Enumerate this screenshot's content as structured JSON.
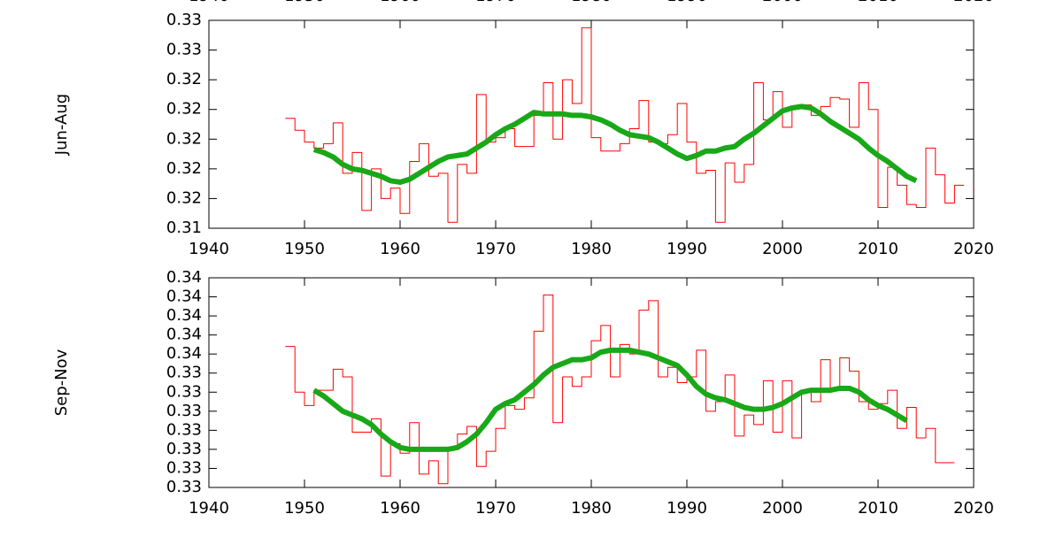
{
  "chart_data": [
    {
      "type": "line",
      "ylabel": "Jun-Aug",
      "xlim": [
        1940,
        2020
      ],
      "xticks": [
        1940,
        1950,
        1960,
        1970,
        1980,
        1990,
        2000,
        2010,
        2020
      ],
      "ylim": [
        0.314,
        0.328
      ],
      "yticks": [
        {
          "value": 0.314,
          "label": "0.31"
        },
        {
          "value": 0.316,
          "label": "0.32"
        },
        {
          "value": 0.318,
          "label": "0.32"
        },
        {
          "value": 0.32,
          "label": "0.32"
        },
        {
          "value": 0.322,
          "label": "0.32"
        },
        {
          "value": 0.324,
          "label": "0.32"
        },
        {
          "value": 0.326,
          "label": "0.33"
        },
        {
          "value": 0.328,
          "label": "0.33"
        }
      ],
      "series": [
        {
          "color": "#ff0000",
          "drawstyle": "steps-post",
          "x": [
            1948,
            1949,
            1950,
            1951,
            1952,
            1953,
            1954,
            1955,
            1956,
            1957,
            1958,
            1959,
            1960,
            1961,
            1962,
            1963,
            1964,
            1965,
            1966,
            1967,
            1968,
            1969,
            1970,
            1971,
            1972,
            1973,
            1974,
            1975,
            1976,
            1977,
            1978,
            1979,
            1980,
            1981,
            1982,
            1983,
            1984,
            1985,
            1986,
            1987,
            1988,
            1989,
            1990,
            1991,
            1992,
            1993,
            1994,
            1995,
            1996,
            1997,
            1998,
            1999,
            2000,
            2001,
            2002,
            2003,
            2004,
            2005,
            2006,
            2007,
            2008,
            2009,
            2010,
            2011,
            2012,
            2013,
            2014,
            2015,
            2016,
            2017,
            2018
          ],
          "values": [
            0.3214,
            0.3206,
            0.3198,
            0.3194,
            0.3197,
            0.3211,
            0.3177,
            0.3191,
            0.3152,
            0.318,
            0.316,
            0.3167,
            0.315,
            0.3185,
            0.3197,
            0.3175,
            0.3177,
            0.3144,
            0.3183,
            0.3177,
            0.323,
            0.3198,
            0.3201,
            0.3207,
            0.3195,
            0.3195,
            0.3216,
            0.3238,
            0.32,
            0.324,
            0.3224,
            0.3275,
            0.3201,
            0.3192,
            0.3192,
            0.3197,
            0.3207,
            0.3226,
            0.3198,
            0.3197,
            0.3203,
            0.3224,
            0.3198,
            0.3177,
            0.3179,
            0.3144,
            0.3184,
            0.3171,
            0.3183,
            0.3238,
            0.3213,
            0.3232,
            0.3208,
            0.3221,
            0.3223,
            0.3216,
            0.3222,
            0.3228,
            0.3227,
            0.3208,
            0.3238,
            0.322,
            0.3154,
            0.3181,
            0.3169,
            0.3156,
            0.3154,
            0.3194,
            0.3176,
            0.3157,
            0.3169
          ]
        },
        {
          "color": "#18a818",
          "x": [
            1951,
            1952,
            1953,
            1954,
            1955,
            1956,
            1957,
            1958,
            1959,
            1960,
            1961,
            1962,
            1963,
            1964,
            1965,
            1966,
            1967,
            1968,
            1969,
            1970,
            1971,
            1972,
            1973,
            1974,
            1975,
            1976,
            1977,
            1978,
            1979,
            1980,
            1981,
            1982,
            1983,
            1984,
            1985,
            1986,
            1987,
            1988,
            1989,
            1990,
            1991,
            1992,
            1993,
            1994,
            1995,
            1996,
            1997,
            1998,
            1999,
            2000,
            2001,
            2002,
            2003,
            2004,
            2005,
            2006,
            2007,
            2008,
            2009,
            2010,
            2011,
            2012,
            2013,
            2014
          ],
          "values": [
            0.3193,
            0.3191,
            0.3188,
            0.3183,
            0.318,
            0.3179,
            0.3177,
            0.3175,
            0.3172,
            0.3171,
            0.3173,
            0.3177,
            0.3181,
            0.3185,
            0.3188,
            0.3189,
            0.319,
            0.3194,
            0.3198,
            0.3203,
            0.3207,
            0.321,
            0.3214,
            0.3218,
            0.3217,
            0.3217,
            0.3217,
            0.3216,
            0.3216,
            0.3215,
            0.3213,
            0.321,
            0.3206,
            0.3203,
            0.3202,
            0.3201,
            0.3198,
            0.3194,
            0.319,
            0.3187,
            0.3189,
            0.3192,
            0.3192,
            0.3194,
            0.3195,
            0.32,
            0.3204,
            0.3209,
            0.3214,
            0.3219,
            0.3221,
            0.3222,
            0.3221,
            0.3217,
            0.3212,
            0.3208,
            0.3204,
            0.32,
            0.3194,
            0.3189,
            0.3185,
            0.318,
            0.3175,
            0.3172
          ]
        }
      ]
    },
    {
      "type": "line",
      "ylabel": "Sep-Nov",
      "xlim": [
        1940,
        2020
      ],
      "xticks": [
        1940,
        1950,
        1960,
        1970,
        1980,
        1990,
        2000,
        2010,
        2020
      ],
      "ylim": [
        0.328,
        0.339
      ],
      "yticks": [
        {
          "value": 0.328,
          "label": "0.33"
        },
        {
          "value": 0.329,
          "label": "0.33"
        },
        {
          "value": 0.33,
          "label": "0.33"
        },
        {
          "value": 0.331,
          "label": "0.33"
        },
        {
          "value": 0.332,
          "label": "0.33"
        },
        {
          "value": 0.333,
          "label": "0.33"
        },
        {
          "value": 0.334,
          "label": "0.33"
        },
        {
          "value": 0.335,
          "label": "0.34"
        },
        {
          "value": 0.336,
          "label": "0.34"
        },
        {
          "value": 0.337,
          "label": "0.34"
        },
        {
          "value": 0.338,
          "label": "0.34"
        },
        {
          "value": 0.339,
          "label": "0.34"
        }
      ],
      "series": [
        {
          "color": "#ff0000",
          "drawstyle": "steps-post",
          "x": [
            1948,
            1949,
            1950,
            1951,
            1952,
            1953,
            1954,
            1955,
            1956,
            1957,
            1958,
            1959,
            1960,
            1961,
            1962,
            1963,
            1964,
            1965,
            1966,
            1967,
            1968,
            1969,
            1970,
            1971,
            1972,
            1973,
            1974,
            1975,
            1976,
            1977,
            1978,
            1979,
            1980,
            1981,
            1982,
            1983,
            1984,
            1985,
            1986,
            1987,
            1988,
            1989,
            1990,
            1991,
            1992,
            1993,
            1994,
            1995,
            1996,
            1997,
            1998,
            1999,
            2000,
            2001,
            2002,
            2003,
            2004,
            2005,
            2006,
            2007,
            2008,
            2009,
            2010,
            2011,
            2012,
            2013,
            2014,
            2015,
            2016,
            2017
          ],
          "values": [
            0.3354,
            0.333,
            0.3323,
            0.3331,
            0.3331,
            0.3342,
            0.3338,
            0.3309,
            0.3309,
            0.3316,
            0.3286,
            0.3303,
            0.3298,
            0.3314,
            0.3287,
            0.3294,
            0.3282,
            0.33,
            0.3308,
            0.3312,
            0.3291,
            0.3299,
            0.3311,
            0.3323,
            0.3321,
            0.3327,
            0.3362,
            0.3381,
            0.3314,
            0.3338,
            0.3333,
            0.3338,
            0.3357,
            0.3365,
            0.3338,
            0.3355,
            0.335,
            0.3373,
            0.3378,
            0.3338,
            0.3343,
            0.3335,
            0.3338,
            0.3352,
            0.332,
            0.3325,
            0.3339,
            0.3307,
            0.3318,
            0.3313,
            0.3336,
            0.3309,
            0.3336,
            0.3306,
            0.3331,
            0.3325,
            0.3347,
            0.3332,
            0.3348,
            0.3341,
            0.3325,
            0.3321,
            0.3324,
            0.3331,
            0.3311,
            0.3322,
            0.3306,
            0.3311,
            0.3293,
            0.3293
          ]
        },
        {
          "color": "#18a818",
          "x": [
            1951,
            1952,
            1953,
            1954,
            1955,
            1956,
            1957,
            1958,
            1959,
            1960,
            1961,
            1962,
            1963,
            1964,
            1965,
            1966,
            1967,
            1968,
            1969,
            1970,
            1971,
            1972,
            1973,
            1974,
            1975,
            1976,
            1977,
            1978,
            1979,
            1980,
            1981,
            1982,
            1983,
            1984,
            1985,
            1986,
            1987,
            1988,
            1989,
            1990,
            1991,
            1992,
            1993,
            1994,
            1995,
            1996,
            1997,
            1998,
            1999,
            2000,
            2001,
            2002,
            2003,
            2004,
            2005,
            2006,
            2007,
            2008,
            2009,
            2010,
            2011,
            2012,
            2013
          ],
          "values": [
            0.3331,
            0.3328,
            0.3324,
            0.332,
            0.3318,
            0.3316,
            0.3313,
            0.3308,
            0.3304,
            0.3301,
            0.33,
            0.33,
            0.33,
            0.33,
            0.33,
            0.3301,
            0.3304,
            0.3308,
            0.3314,
            0.3321,
            0.3324,
            0.3326,
            0.333,
            0.3334,
            0.3339,
            0.3343,
            0.3345,
            0.3347,
            0.3347,
            0.3348,
            0.3351,
            0.3352,
            0.3352,
            0.3352,
            0.3351,
            0.335,
            0.3348,
            0.3346,
            0.3344,
            0.3339,
            0.3333,
            0.3329,
            0.3327,
            0.3326,
            0.3324,
            0.3322,
            0.3321,
            0.3321,
            0.3322,
            0.3324,
            0.3327,
            0.333,
            0.3331,
            0.3331,
            0.3331,
            0.3332,
            0.3332,
            0.333,
            0.3326,
            0.3323,
            0.3321,
            0.3318,
            0.3315
          ]
        }
      ]
    }
  ]
}
